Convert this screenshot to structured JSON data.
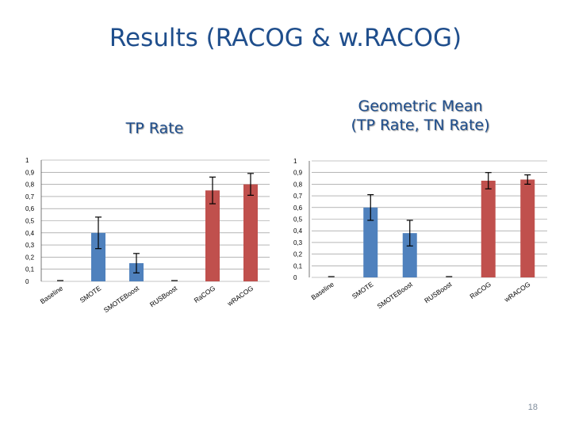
{
  "slide": {
    "title": "Results (RACOG & w.RACOG)",
    "page_number": "18"
  },
  "colors": {
    "title": "#1f4e8c",
    "blue_bar": "#4f81bd",
    "red_bar": "#c0504d",
    "grid": "#8a8a8a"
  },
  "chart_data": [
    {
      "type": "bar",
      "title": "TP Rate",
      "categories": [
        "Baseline",
        "SMOTE",
        "SMOTEBoost",
        "RUSBoost",
        "RaCOG",
        "wRACOG"
      ],
      "values": [
        0.0,
        0.4,
        0.15,
        0.0,
        0.75,
        0.8
      ],
      "errors": [
        0.0,
        0.13,
        0.08,
        0.0,
        0.11,
        0.09
      ],
      "bar_colors": [
        "#4f81bd",
        "#4f81bd",
        "#4f81bd",
        "#4f81bd",
        "#c0504d",
        "#c0504d"
      ],
      "ylim": [
        0,
        1
      ],
      "yticks": [
        "0",
        "0,1",
        "0,2",
        "0,3",
        "0,4",
        "0,5",
        "0,6",
        "0,7",
        "0,8",
        "0,9",
        "1"
      ],
      "grid": true,
      "legend": "none"
    },
    {
      "type": "bar",
      "title": "Geometric Mean\n(TP Rate, TN Rate)",
      "categories": [
        "Baseline",
        "SMOTE",
        "SMOTEBoost",
        "RUSBoost",
        "RaCOG",
        "wRACOG"
      ],
      "values": [
        0.0,
        0.6,
        0.38,
        0.0,
        0.83,
        0.84
      ],
      "errors": [
        0.0,
        0.11,
        0.11,
        0.0,
        0.07,
        0.04
      ],
      "bar_colors": [
        "#4f81bd",
        "#4f81bd",
        "#4f81bd",
        "#4f81bd",
        "#c0504d",
        "#c0504d"
      ],
      "ylim": [
        0,
        1
      ],
      "yticks": [
        "0",
        "0,1",
        "0,2",
        "0,3",
        "0,4",
        "0,5",
        "0,6",
        "0,7",
        "0,8",
        "0,9",
        "1"
      ],
      "grid": true,
      "legend": "none"
    }
  ]
}
